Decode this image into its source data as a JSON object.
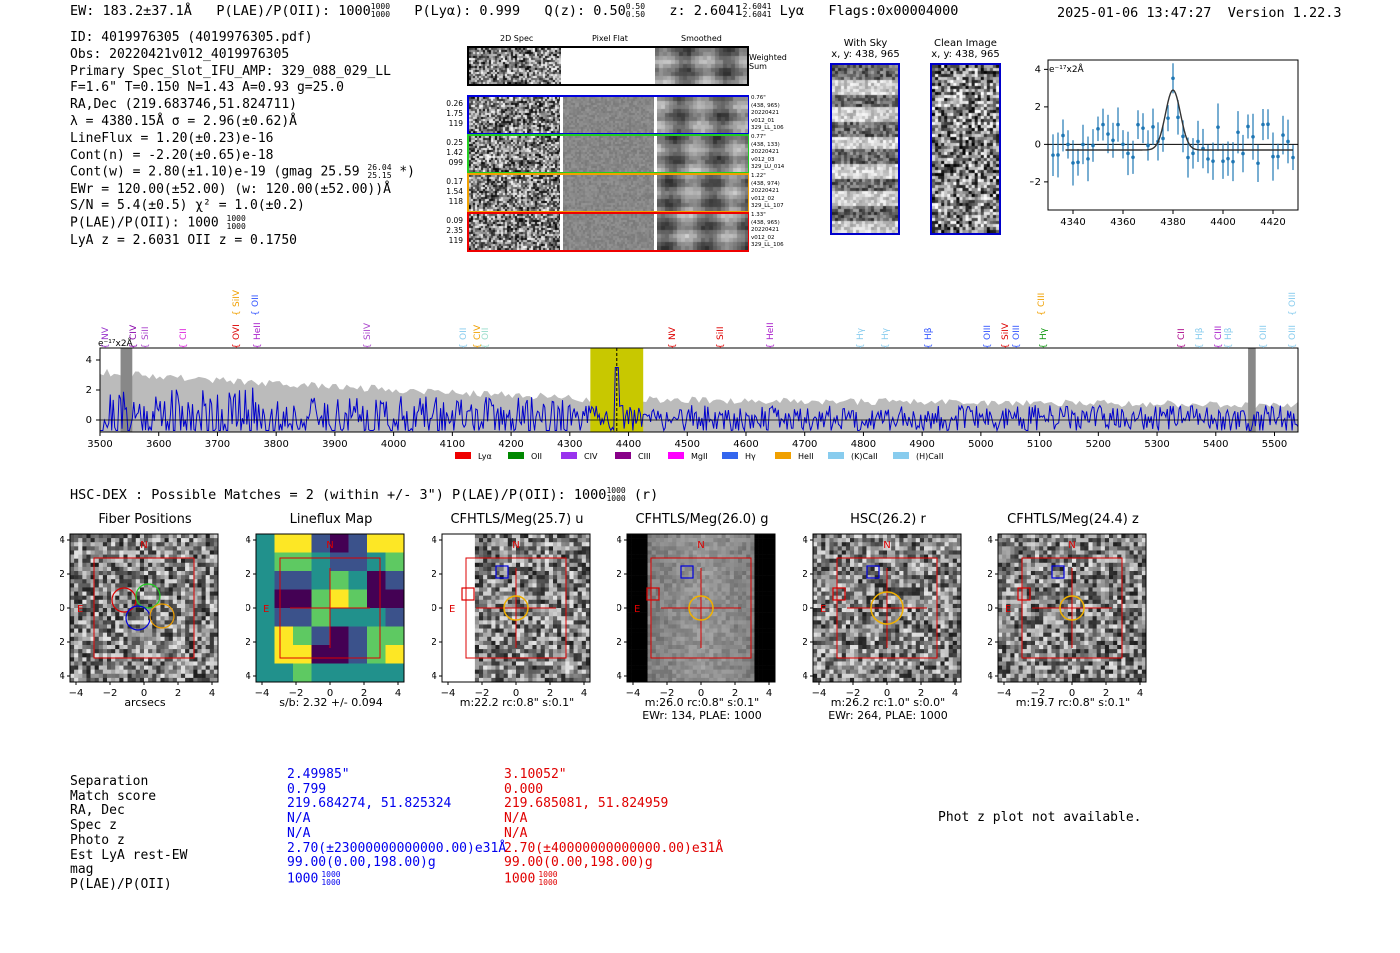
{
  "header": {
    "ew": "EW: 183.2±37.1Å",
    "plae_label": "P(LAE)/P(OII): 1000",
    "plae_sup": "1000",
    "plae_sub": "1000",
    "plya": "P(Lyα): 0.999",
    "qz_label": "Q(z): 0.50",
    "qz_sup": "0.50",
    "qz_sub": "0.50",
    "z_label": "z: 2.6041",
    "z_sup": "2.6041",
    "z_sub": "2.6041",
    "line": "Lyα",
    "flags": "Flags:0x00004000",
    "timestamp": "2025-01-06 13:47:27",
    "version": "Version 1.22.3"
  },
  "info": {
    "id": "ID: 4019976305 (4019976305.pdf)",
    "obs": "Obs: 20220421v012_4019976305",
    "primary": "Primary Spec_Slot_IFU_AMP: 329_088_029_LL",
    "params": "F=1.6\"  T=0.150  N=1.43  A=0.93  g=25.0",
    "radec": "RA,Dec (219.683746,51.824711)",
    "lambda": "λ = 4380.15Å  σ = 2.96(±0.62)Å",
    "lineflux": "LineFlux = 1.20(±0.23)e-16",
    "contn": "Cont(n) = -2.20(±0.65)e-18",
    "contw": "Cont(w) = 2.80(±1.10)e-19 (gmag 25.59",
    "contw_sup": "26.04",
    "contw_sub": "25.15",
    "contw_end": "*)",
    "ewr": "EWr = 120.00(±52.00) (w: 120.00(±52.00))Å",
    "sn": "S/N = 5.4(±0.5)  χ² = 1.0(±0.2)",
    "plae": "P(LAE)/P(OII): 1000",
    "plae_sup": "1000",
    "plae_sub": "1000",
    "lyaz": "LyA z = 2.6031  OII z = 0.1750"
  },
  "spec2d": {
    "col_titles": [
      "2D Spec",
      "Pixel Flat",
      "Smoothed"
    ],
    "weighted_label": "Weighted Sum",
    "rows": [
      {
        "left": [
          "0.26",
          "1.75",
          "119"
        ],
        "right": [
          "0.76\"",
          "(438, 965)",
          "20220421",
          "v012_01",
          "329_LL_106"
        ],
        "color": "#0000dd"
      },
      {
        "left": [
          "0.25",
          "1.42",
          "099"
        ],
        "right": [
          "0.77\"",
          "(438, 133)",
          "20220421",
          "v012_03",
          "329_LU_014"
        ],
        "color": "#22cc22"
      },
      {
        "left": [
          "0.17",
          "1.54",
          "118"
        ],
        "right": [
          "1.22\"",
          "(438, 974)",
          "20220421",
          "v012_02",
          "329_LL_107"
        ],
        "color": "#f0a000"
      },
      {
        "left": [
          "0.09",
          "2.35",
          "119"
        ],
        "right": [
          "1.33\"",
          "(438, 965)",
          "20220421",
          "v012_02",
          "329_LL_106"
        ],
        "color": "#ee0000"
      }
    ]
  },
  "cutouts": {
    "with_sky_title": "With Sky",
    "with_sky_coords": "x, y: 438, 965",
    "clean_title": "Clean Image",
    "clean_coords": "x, y: 438, 965"
  },
  "zoom_spec": {
    "unit_label": "e⁻¹⁷x2Å",
    "x_ticks": [
      "4340",
      "4360",
      "4380",
      "4400",
      "4420"
    ],
    "y_ticks": [
      "4",
      "2",
      "0",
      "−2"
    ]
  },
  "full_spec": {
    "unit_label": "e⁻¹⁷x2Å",
    "x_ticks": [
      "3500",
      "3600",
      "3700",
      "3800",
      "3900",
      "4000",
      "4100",
      "4200",
      "4300",
      "4400",
      "4500",
      "4600",
      "4700",
      "4800",
      "4900",
      "5000",
      "5100",
      "5200",
      "5300",
      "5400",
      "5500"
    ],
    "y_ticks": [
      "4",
      "2",
      "0"
    ],
    "line_marks": [
      {
        "label": "NV",
        "color": "#9933cc",
        "row": 1
      },
      {
        "label": "CIV",
        "color": "#8800aa",
        "row": 1
      },
      {
        "label": "SiII",
        "color": "#aa44cc",
        "row": 1
      },
      {
        "label": "CII",
        "color": "#dd22dd",
        "row": 1
      },
      {
        "label": "SiIV",
        "color": "#f0a000",
        "row": 0
      },
      {
        "label": "OII",
        "color": "#3355ff",
        "row": 0
      },
      {
        "label": "OVI",
        "color": "#dd0000",
        "row": 1
      },
      {
        "label": "HeII",
        "color": "#aa22cc",
        "row": 1
      },
      {
        "label": "SiIV",
        "color": "#aa44cc",
        "row": 1
      },
      {
        "label": "OII",
        "color": "#88ccee",
        "row": 1
      },
      {
        "label": "CIV",
        "color": "#f0a000",
        "row": 1
      },
      {
        "label": "OII",
        "color": "#99ddcc",
        "row": 1
      },
      {
        "label": "NV",
        "color": "#dd0000",
        "row": 1
      },
      {
        "label": "SiII",
        "color": "#dd0000",
        "row": 1
      },
      {
        "label": "HeII",
        "color": "#aa22cc",
        "row": 1
      },
      {
        "label": "Hγ",
        "color": "#88ccee",
        "row": 1
      },
      {
        "label": "Hγ",
        "color": "#88ccee",
        "row": 1
      },
      {
        "label": "Hβ",
        "color": "#3355ff",
        "row": 1
      },
      {
        "label": "OIII",
        "color": "#3355ff",
        "row": 1
      },
      {
        "label": "SiIV",
        "color": "#dd0000",
        "row": 1
      },
      {
        "label": "OIII",
        "color": "#3355ff",
        "row": 1
      },
      {
        "label": "CIII",
        "color": "#f0a000",
        "row": 0
      },
      {
        "label": "Hγ",
        "color": "#119911",
        "row": 1
      },
      {
        "label": "CII",
        "color": "#aa0088",
        "row": 1
      },
      {
        "label": "Hβ",
        "color": "#88ccee",
        "row": 1
      },
      {
        "label": "CIII",
        "color": "#aa22cc",
        "row": 1
      },
      {
        "label": "Hβ",
        "color": "#88ccee",
        "row": 1
      },
      {
        "label": "OIII",
        "color": "#88ccee",
        "row": 1
      },
      {
        "label": "OIII",
        "color": "#88ccee",
        "row": 0
      },
      {
        "label": "OIII",
        "color": "#88ccee",
        "row": 1
      }
    ],
    "legend": [
      {
        "label": "Lyα",
        "color": "#ee0000"
      },
      {
        "label": "OII",
        "color": "#008800"
      },
      {
        "label": "CIV",
        "color": "#9933ee"
      },
      {
        "label": "CIII",
        "color": "#880088"
      },
      {
        "label": "MgII",
        "color": "#ff00ff"
      },
      {
        "label": "Hγ",
        "color": "#3366ee"
      },
      {
        "label": "HeII",
        "color": "#f0a000"
      },
      {
        "label": "(K)CaII",
        "color": "#88ccee"
      },
      {
        "label": "(H)CaII",
        "color": "#88ccee"
      }
    ]
  },
  "hsc": {
    "title": "HSC-DEX : Possible Matches = 2 (within +/- 3\")  P(LAE)/P(OII): 1000",
    "title_sup": "1000",
    "title_sub": "1000",
    "title_end": "(r)"
  },
  "images": [
    {
      "title": "Fiber Positions",
      "caption1": "arcsecs",
      "caption2": ""
    },
    {
      "title": "Lineflux Map",
      "caption1": "s/b: 2.32 +/- 0.094",
      "caption2": ""
    },
    {
      "title": "CFHTLS/Meg(25.7) u",
      "caption1": "m:22.2 rc:0.8\"  s:0.1\"",
      "caption2": ""
    },
    {
      "title": "CFHTLS/Meg(26.0) g",
      "caption1": "m:26.0 rc:0.8\"  s:0.1\"",
      "caption2": "EWr: 134, PLAE: 1000"
    },
    {
      "title": "HSC(26.2) r",
      "caption1": "m:26.2 rc:1.0\"  s:0.0\"",
      "caption2": "EWr: 264, PLAE: 1000"
    },
    {
      "title": "CFHTLS/Meg(24.4) z",
      "caption1": "m:19.7 rc:0.8\"  s:0.1\"",
      "caption2": ""
    }
  ],
  "img_axis": {
    "ticks": [
      "4",
      "2",
      "0",
      "−2",
      "−4"
    ],
    "xticks": [
      "−4",
      "−2",
      "0",
      "2",
      "4"
    ],
    "north": "N",
    "east": "E"
  },
  "matches": {
    "labels": [
      "Separation",
      "Match score",
      "RA, Dec",
      "Spec z",
      "Photo z",
      "Est LyA rest-EW",
      "mag",
      "P(LAE)/P(OII)"
    ],
    "blue": [
      "2.49985\"",
      "0.799",
      "219.684274, 51.825324",
      "N/A",
      "N/A",
      "2.70(±23000000000000.00)e31Å",
      "99.00(0.00,198.00)g",
      "1000"
    ],
    "red": [
      "3.10052\"",
      "0.000",
      "219.685081, 51.824959",
      "N/A",
      "N/A",
      "2.70(±40000000000000.00)e31Å",
      "99.00(0.00,198.00)g",
      "1000"
    ],
    "plae_sup": "1000",
    "plae_sub": "1000"
  },
  "photz_note": "Phot z plot not available."
}
